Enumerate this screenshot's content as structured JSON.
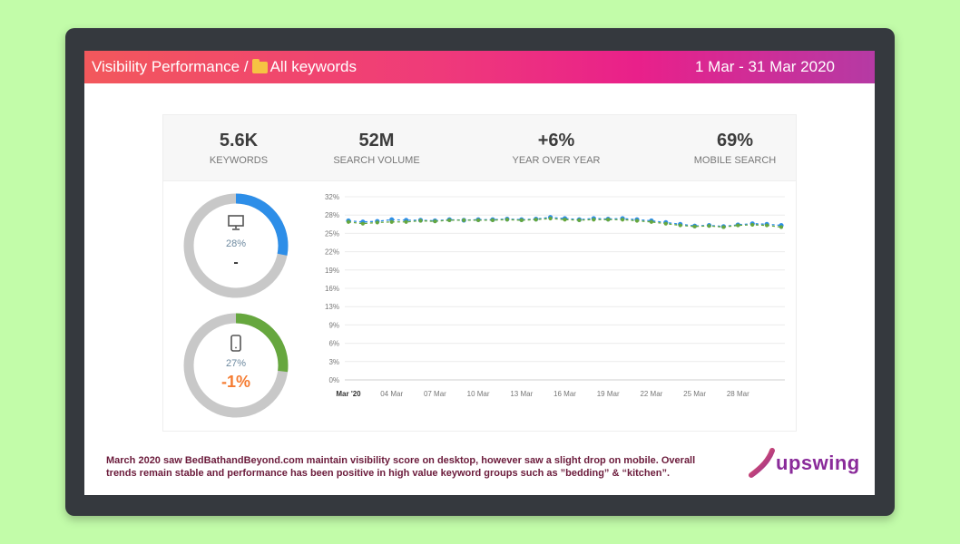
{
  "header": {
    "title": "Visibility Performance /",
    "folder_label": "All keywords",
    "date_range": "1 Mar - 31 Mar 2020",
    "gradient_start": "#f2585c",
    "gradient_end": "#b53aa4"
  },
  "stats": [
    {
      "value": "5.6K",
      "label": "KEYWORDS"
    },
    {
      "value": "52M",
      "label": "SEARCH VOLUME"
    },
    {
      "value": "+6%",
      "label": "YEAR OVER YEAR"
    },
    {
      "value": "69%",
      "label": "MOBILE SEARCH"
    }
  ],
  "devices": [
    {
      "icon": "desktop-icon",
      "percent_label": "28%",
      "percent": 28,
      "change": "-",
      "color": "#2d8ee8",
      "change_color": "#333333"
    },
    {
      "icon": "mobile-icon",
      "percent_label": "27%",
      "percent": 27,
      "change": "-1%",
      "color": "#66a73e",
      "change_color": "#f57c32"
    }
  ],
  "chart_data": {
    "type": "line",
    "y_ticks": [
      "0%",
      "3%",
      "6%",
      "9%",
      "13%",
      "16%",
      "19%",
      "22%",
      "25%",
      "28%",
      "32%"
    ],
    "ylim": [
      0,
      32
    ],
    "x_ticks": [
      "Mar '20",
      "04 Mar",
      "07 Mar",
      "10 Mar",
      "13 Mar",
      "16 Mar",
      "19 Mar",
      "22 Mar",
      "25 Mar",
      "28 Mar"
    ],
    "x": [
      1,
      2,
      3,
      4,
      5,
      6,
      7,
      8,
      9,
      10,
      11,
      12,
      13,
      14,
      15,
      16,
      17,
      18,
      19,
      20,
      21,
      22,
      23,
      24,
      25,
      26,
      27,
      28,
      29,
      30,
      31
    ],
    "grid": true,
    "series": [
      {
        "color": "#2d8ee8",
        "values": [
          27.8,
          27.6,
          27.7,
          28.0,
          27.9,
          27.9,
          27.8,
          28.0,
          27.9,
          28.0,
          28.0,
          28.1,
          28.0,
          28.1,
          28.4,
          28.2,
          28.0,
          28.2,
          28.1,
          28.2,
          28.0,
          27.8,
          27.5,
          27.2,
          26.9,
          27.0,
          26.8,
          27.1,
          27.3,
          27.2,
          27.0
        ]
      },
      {
        "color": "#66a73e",
        "values": [
          27.6,
          27.3,
          27.5,
          27.6,
          27.6,
          27.8,
          27.7,
          27.9,
          27.9,
          27.9,
          27.9,
          28.0,
          27.9,
          28.0,
          28.2,
          28.0,
          27.9,
          28.0,
          28.0,
          28.0,
          27.8,
          27.6,
          27.3,
          27.0,
          26.8,
          26.9,
          26.7,
          27.0,
          27.1,
          27.0,
          26.7
        ]
      }
    ]
  },
  "footer": {
    "text_line1": "March 2020 saw BedBathandBeyond.com maintain visibility score on desktop, however saw a slight drop on mobile. Overall",
    "text_line2": "trends remain stable and performance has been positive in high value keyword groups such as ”bedding” & “kitchen”."
  },
  "logo": {
    "text": "upswing",
    "color": "#8a2b9a"
  }
}
